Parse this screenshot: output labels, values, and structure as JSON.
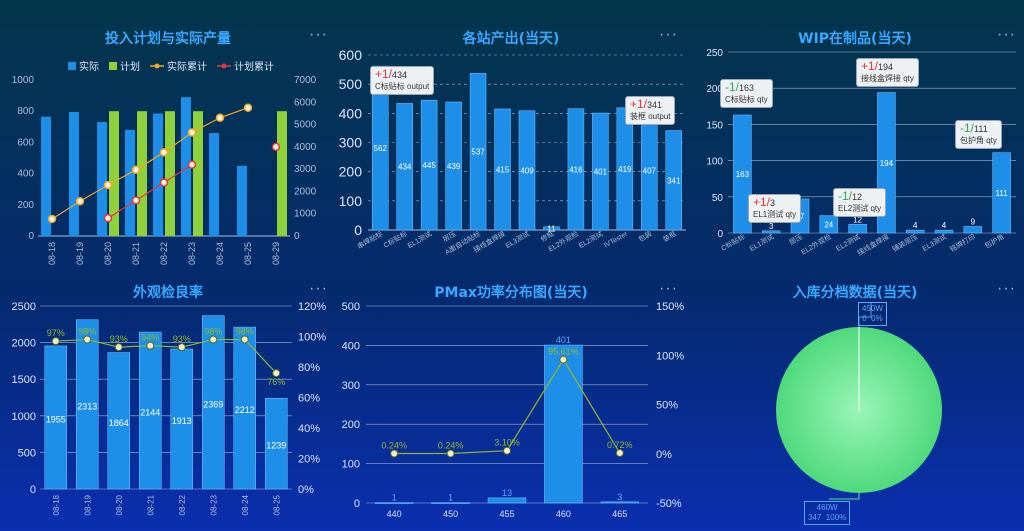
{
  "panels": {
    "p1": {
      "title": "投入计划与实际产量",
      "more": "···"
    },
    "p2": {
      "title": "各站产出(当天)",
      "more": "···"
    },
    "p3": {
      "title": "WIP在制品(当天)",
      "more": "···"
    },
    "p4": {
      "title": "外观检良率",
      "more": "···"
    },
    "p5": {
      "title": "PMax功率分布图(当天)",
      "more": "···"
    },
    "p6": {
      "title": "入库分档数据(当天)",
      "more": "···"
    }
  },
  "tooltips": {
    "p2_c": {
      "delta": "+1/",
      "frac": "434",
      "label": "C标贴标 output",
      "dir": "up"
    },
    "p2_b": {
      "delta": "+1/",
      "frac": "341",
      "label": "装框 output",
      "dir": "up"
    },
    "p3_c": {
      "delta": "-1/",
      "frac": "163",
      "label": "C标贴标 qty",
      "dir": "down"
    },
    "p3_jx": {
      "delta": "+1/",
      "frac": "194",
      "label": "接线盒焊接 qty",
      "dir": "up"
    },
    "p3_el1": {
      "delta": "+1/",
      "frac": "3",
      "label": "EL1测试 qty",
      "dir": "up"
    },
    "p3_el2": {
      "delta": "-1/",
      "frac": "12",
      "label": "EL2测试 qty",
      "dir": "down"
    },
    "p3_bh": {
      "delta": "-1/",
      "frac": "111",
      "label": "包护角 qty",
      "dir": "down"
    }
  },
  "pie_labels": {
    "top": {
      "name": "450W",
      "detail": "0  0%"
    },
    "bottom": {
      "name": "460W",
      "detail": "347  100%"
    }
  },
  "chart_data": [
    {
      "type": "bar",
      "title": "投入计划与实际产量",
      "categories": [
        "08-18",
        "08-19",
        "08-20",
        "08-21",
        "08-22",
        "08-23",
        "08-24",
        "08-25",
        "08-29"
      ],
      "legend": [
        "实际",
        "计划",
        "实际累计",
        "计划累计"
      ],
      "legend_position": "top",
      "series": [
        {
          "name": "实际",
          "axis": "left",
          "values": [
            765,
            795,
            730,
            680,
            785,
            890,
            660,
            450,
            null
          ]
        },
        {
          "name": "计划",
          "axis": "left",
          "values": [
            null,
            null,
            800,
            800,
            800,
            800,
            null,
            null,
            800
          ]
        },
        {
          "name": "实际累计",
          "axis": "right",
          "type": "line",
          "values": [
            765,
            1560,
            2290,
            2970,
            3755,
            4645,
            5305,
            5755,
            null
          ]
        },
        {
          "name": "计划累计",
          "axis": "right",
          "type": "line",
          "values": [
            null,
            null,
            800,
            1600,
            2400,
            3200,
            null,
            null,
            4000
          ]
        }
      ],
      "ylim_left": [
        0,
        1000
      ],
      "yticks_left": [
        0,
        200,
        400,
        600,
        800,
        1000
      ],
      "ylim_right": [
        0,
        7000
      ],
      "yticks_right": [
        0,
        1000,
        2000,
        3000,
        4000,
        5000,
        6000,
        7000
      ],
      "colors": {
        "实际": "#1e8fe8",
        "计划": "#8fd13a",
        "实际累计": "#f5a623",
        "计划累计": "#e8333a"
      }
    },
    {
      "type": "bar",
      "title": "各站产出(当天)",
      "categories": [
        "串焊贴标",
        "C标贴标",
        "EL1测试",
        "层压",
        "A面自动贴标",
        "接线盒焊接",
        "EL3测试",
        "修框",
        "EL2外观检",
        "EL2测试",
        "IVTester",
        "包装",
        "装框"
      ],
      "values": [
        562,
        434,
        445,
        439,
        537,
        415,
        409,
        11,
        416,
        401,
        419,
        407,
        341
      ],
      "ylim": [
        0,
        600
      ],
      "yticks": [
        0,
        100,
        200,
        300,
        400,
        500,
        600
      ],
      "grid": true,
      "colors": {
        "bar": "#1e8fe8"
      }
    },
    {
      "type": "bar",
      "title": "WIP在制品(当天)",
      "categories": [
        "C标贴标",
        "EL1测试",
        "层压",
        "EL2外观检",
        "EL2测试",
        "接线盒焊接",
        "铺装层压",
        "EL3测试",
        "铭牌打印",
        "包护角"
      ],
      "values": [
        163,
        3,
        47,
        24,
        12,
        194,
        4,
        4,
        9,
        111
      ],
      "ylim": [
        0,
        250
      ],
      "yticks": [
        0,
        50,
        100,
        150,
        200,
        250
      ],
      "grid": true,
      "colors": {
        "bar": "#1e8fe8"
      }
    },
    {
      "type": "bar",
      "title": "外观检良率",
      "categories": [
        "08-18",
        "08-19",
        "08-20",
        "08-21",
        "08-22",
        "08-23",
        "08-24",
        "08-25"
      ],
      "series": [
        {
          "name": "数量",
          "axis": "left",
          "values": [
            1955,
            2313,
            1864,
            2144,
            1913,
            2369,
            2212,
            1239
          ]
        },
        {
          "name": "良率",
          "axis": "right",
          "type": "line",
          "values": [
            97,
            98,
            93,
            94,
            93,
            98,
            98,
            76
          ],
          "labels": [
            "97%",
            "98%",
            "93%",
            "94%",
            "93%",
            "98%",
            "98%",
            "76%"
          ]
        }
      ],
      "ylim_left": [
        0,
        2500
      ],
      "yticks_left": [
        0,
        500,
        1000,
        1500,
        2000,
        2500
      ],
      "ylim_right": [
        0,
        120
      ],
      "yticks_right_labels": [
        "0%",
        "20%",
        "40%",
        "60%",
        "80%",
        "100%",
        "120%"
      ],
      "colors": {
        "bar": "#1e8fe8",
        "line": "#8fb82f"
      }
    },
    {
      "type": "bar",
      "title": "PMax功率分布图(当天)",
      "categories": [
        "440",
        "450",
        "455",
        "460",
        "465"
      ],
      "series": [
        {
          "name": "数量",
          "axis": "left",
          "values": [
            1,
            1,
            13,
            401,
            3
          ]
        },
        {
          "name": "占比",
          "axis": "right",
          "type": "line",
          "values": [
            0.24,
            0.24,
            3.1,
            95.61,
            0.72
          ],
          "labels": [
            "0.24%",
            "0.24%",
            "3.10%",
            "95.61%",
            "0.72%"
          ]
        }
      ],
      "ylim_left": [
        0,
        500
      ],
      "yticks_left": [
        0,
        100,
        200,
        300,
        400,
        500
      ],
      "ylim_right": [
        -50,
        150
      ],
      "yticks_right_labels": [
        "-50%",
        "0%",
        "50%",
        "100%",
        "150%"
      ],
      "colors": {
        "bar": "#1e8fe8",
        "line": "#8fb82f"
      }
    },
    {
      "type": "pie",
      "title": "入库分档数据(当天)",
      "slices": [
        {
          "name": "450W",
          "value": 0,
          "percent": "0%"
        },
        {
          "name": "460W",
          "value": 347,
          "percent": "100%"
        }
      ],
      "colors": {
        "460W": "#5fe08a"
      }
    }
  ]
}
